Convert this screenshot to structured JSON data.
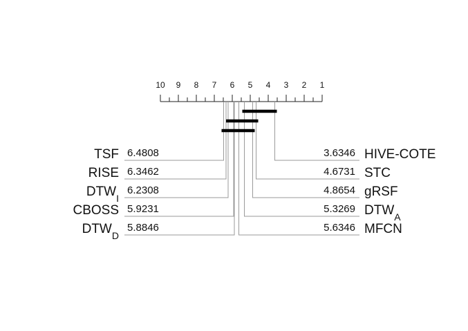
{
  "chart_data": {
    "type": "critical-difference",
    "axis": {
      "min": 1,
      "max": 10,
      "reversed": true,
      "ticks": [
        "10",
        "9",
        "8",
        "7",
        "6",
        "5",
        "4",
        "3",
        "2",
        "1"
      ]
    },
    "left_methods": [
      {
        "name": "TSF",
        "sub": "",
        "rank": 6.4808,
        "rank_label": "6.4808"
      },
      {
        "name": "RISE",
        "sub": "",
        "rank": 6.3462,
        "rank_label": "6.3462"
      },
      {
        "name": "DTW",
        "sub": "I",
        "rank": 6.2308,
        "rank_label": "6.2308"
      },
      {
        "name": "CBOSS",
        "sub": "",
        "rank": 5.9231,
        "rank_label": "5.9231"
      },
      {
        "name": "DTW",
        "sub": "D",
        "rank": 5.8846,
        "rank_label": "5.8846"
      }
    ],
    "right_methods": [
      {
        "name": "HIVE-COTE",
        "sub": "",
        "rank": 3.6346,
        "rank_label": "3.6346"
      },
      {
        "name": "STC",
        "sub": "",
        "rank": 4.6731,
        "rank_label": "4.6731"
      },
      {
        "name": "gRSF",
        "sub": "",
        "rank": 4.8654,
        "rank_label": "4.8654"
      },
      {
        "name": "DTW",
        "sub": "A",
        "rank": 5.3269,
        "rank_label": "5.3269"
      },
      {
        "name": "MFCN",
        "sub": "",
        "rank": 5.6346,
        "rank_label": "5.6346"
      }
    ],
    "cliques": [
      {
        "from": 3.6346,
        "to": 5.3269
      },
      {
        "from": 4.6731,
        "to": 6.2308
      },
      {
        "from": 4.8654,
        "to": 6.4808
      }
    ]
  }
}
